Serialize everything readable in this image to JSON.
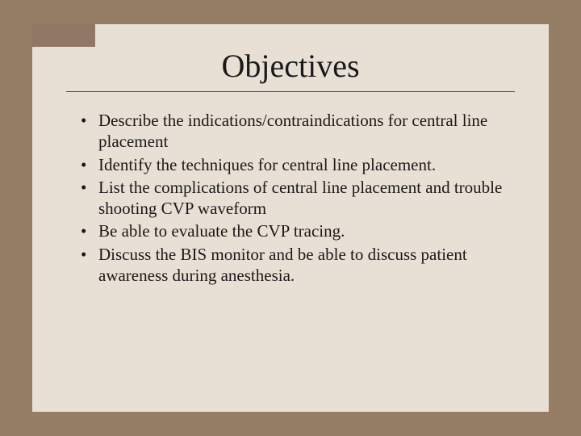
{
  "slide": {
    "title": "Objectives",
    "bullets": [
      "Describe the indications/contraindications for central line placement",
      "Identify the techniques for central line placement.",
      "List the complications of central line placement and trouble shooting CVP waveform",
      "Be able to evaluate the CVP tracing.",
      "Discuss the BIS monitor and be able to discuss patient awareness during anesthesia."
    ],
    "colors": {
      "outer_background": "#957d66",
      "slide_background": "#e8e0d5",
      "corner_accent": "#8f7864",
      "text": "#1a1a1a",
      "underline": "#5a4a3a"
    },
    "typography": {
      "title_fontsize": 40,
      "body_fontsize": 21,
      "font_family": "Times New Roman"
    },
    "layout": {
      "outer_width": 720,
      "outer_height": 540,
      "slide_width": 640,
      "slide_height": 480,
      "corner_width": 78,
      "corner_height": 28
    }
  }
}
